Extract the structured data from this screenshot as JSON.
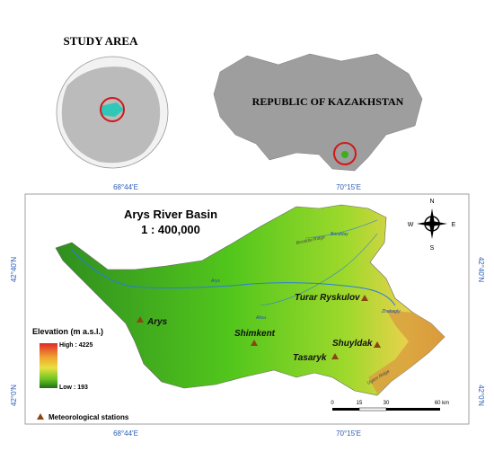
{
  "inset": {
    "title": "STUDY AREA",
    "country": "REPUBLIC OF KAZAKHSTAN"
  },
  "map": {
    "title": "Arys River Basin",
    "scale": "1 : 400,000",
    "lon_labels": [
      "68°44'E",
      "70°15'E"
    ],
    "lat_labels": [
      "42°40'N",
      "42°0'N"
    ],
    "compass": {
      "n": "N",
      "s": "S",
      "e": "E",
      "w": "W"
    },
    "stations": [
      "Arys",
      "Shimkent",
      "Turar Ryskulov",
      "Shuyldak",
      "Tasaryk"
    ],
    "rivers": [
      "Boralday",
      "Arys",
      "Aksu",
      "Zhabagly"
    ],
    "ridges": [
      "Boraldai Ridge",
      "Ugam Ridge"
    ],
    "legend": {
      "title": "Elevation (m a.s.l.)",
      "high": "High : 4225",
      "low": "Low : 193",
      "stations": "Meteorological stations"
    },
    "scalebar": [
      "0",
      "15",
      "30",
      "60 km"
    ]
  }
}
